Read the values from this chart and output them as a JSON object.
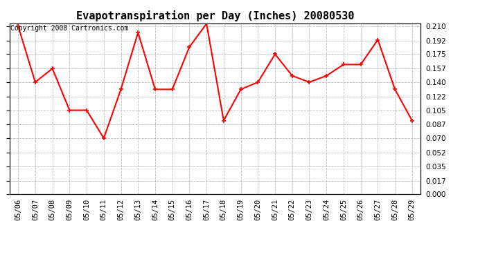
{
  "title": "Evapotranspiration per Day (Inches) 20080530",
  "copyright_text": "Copyright 2008 Cartronics.com",
  "dates": [
    "05/06",
    "05/07",
    "05/08",
    "05/09",
    "05/10",
    "05/11",
    "05/12",
    "05/13",
    "05/14",
    "05/15",
    "05/16",
    "05/17",
    "05/18",
    "05/19",
    "05/20",
    "05/21",
    "05/22",
    "05/23",
    "05/24",
    "05/25",
    "05/26",
    "05/27",
    "05/28",
    "05/29"
  ],
  "values": [
    0.21,
    0.14,
    0.157,
    0.105,
    0.105,
    0.07,
    0.131,
    0.202,
    0.131,
    0.131,
    0.184,
    0.213,
    0.092,
    0.131,
    0.14,
    0.175,
    0.148,
    0.14,
    0.148,
    0.162,
    0.162,
    0.193,
    0.131,
    0.092
  ],
  "line_color": "#FF0000",
  "marker": "+",
  "marker_size": 5,
  "marker_linewidth": 1.2,
  "background_color": "#FFFFFF",
  "grid_color": "#BBBBBB",
  "yticks": [
    0.0,
    0.017,
    0.035,
    0.052,
    0.07,
    0.087,
    0.105,
    0.122,
    0.14,
    0.157,
    0.175,
    0.192,
    0.21
  ],
  "ylim": [
    0.0,
    0.2135
  ],
  "title_fontsize": 11,
  "copyright_fontsize": 7,
  "tick_fontsize": 7.5,
  "linewidth": 1.5
}
